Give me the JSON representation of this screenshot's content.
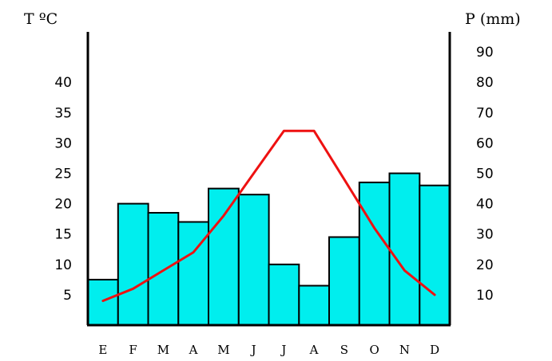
{
  "chart_data": {
    "type": "bar+line",
    "title": "",
    "categories": [
      "E",
      "F",
      "M",
      "A",
      "M",
      "J",
      "J",
      "A",
      "S",
      "O",
      "N",
      "D"
    ],
    "left_axis": {
      "label": "T ºC",
      "ticks": [
        "5",
        "10",
        "15",
        "20",
        "25",
        "30",
        "35",
        "40"
      ],
      "range": [
        0,
        50
      ]
    },
    "right_axis": {
      "label": "P (mm)",
      "ticks": [
        "10",
        "20",
        "30",
        "40",
        "50",
        "60",
        "70",
        "80",
        "90"
      ],
      "range": [
        0,
        100
      ]
    },
    "series": [
      {
        "kind": "bar",
        "axis": "right",
        "color": "#00eeee",
        "values": [
          15,
          40,
          37,
          34,
          45,
          43,
          20,
          13,
          29,
          47,
          50,
          46
        ]
      },
      {
        "kind": "line",
        "axis": "left",
        "color": "#ee1111",
        "values": [
          4,
          6,
          9,
          12,
          18,
          25,
          32,
          32,
          24,
          16,
          9,
          5
        ]
      }
    ],
    "grid": false,
    "legend": "none"
  }
}
